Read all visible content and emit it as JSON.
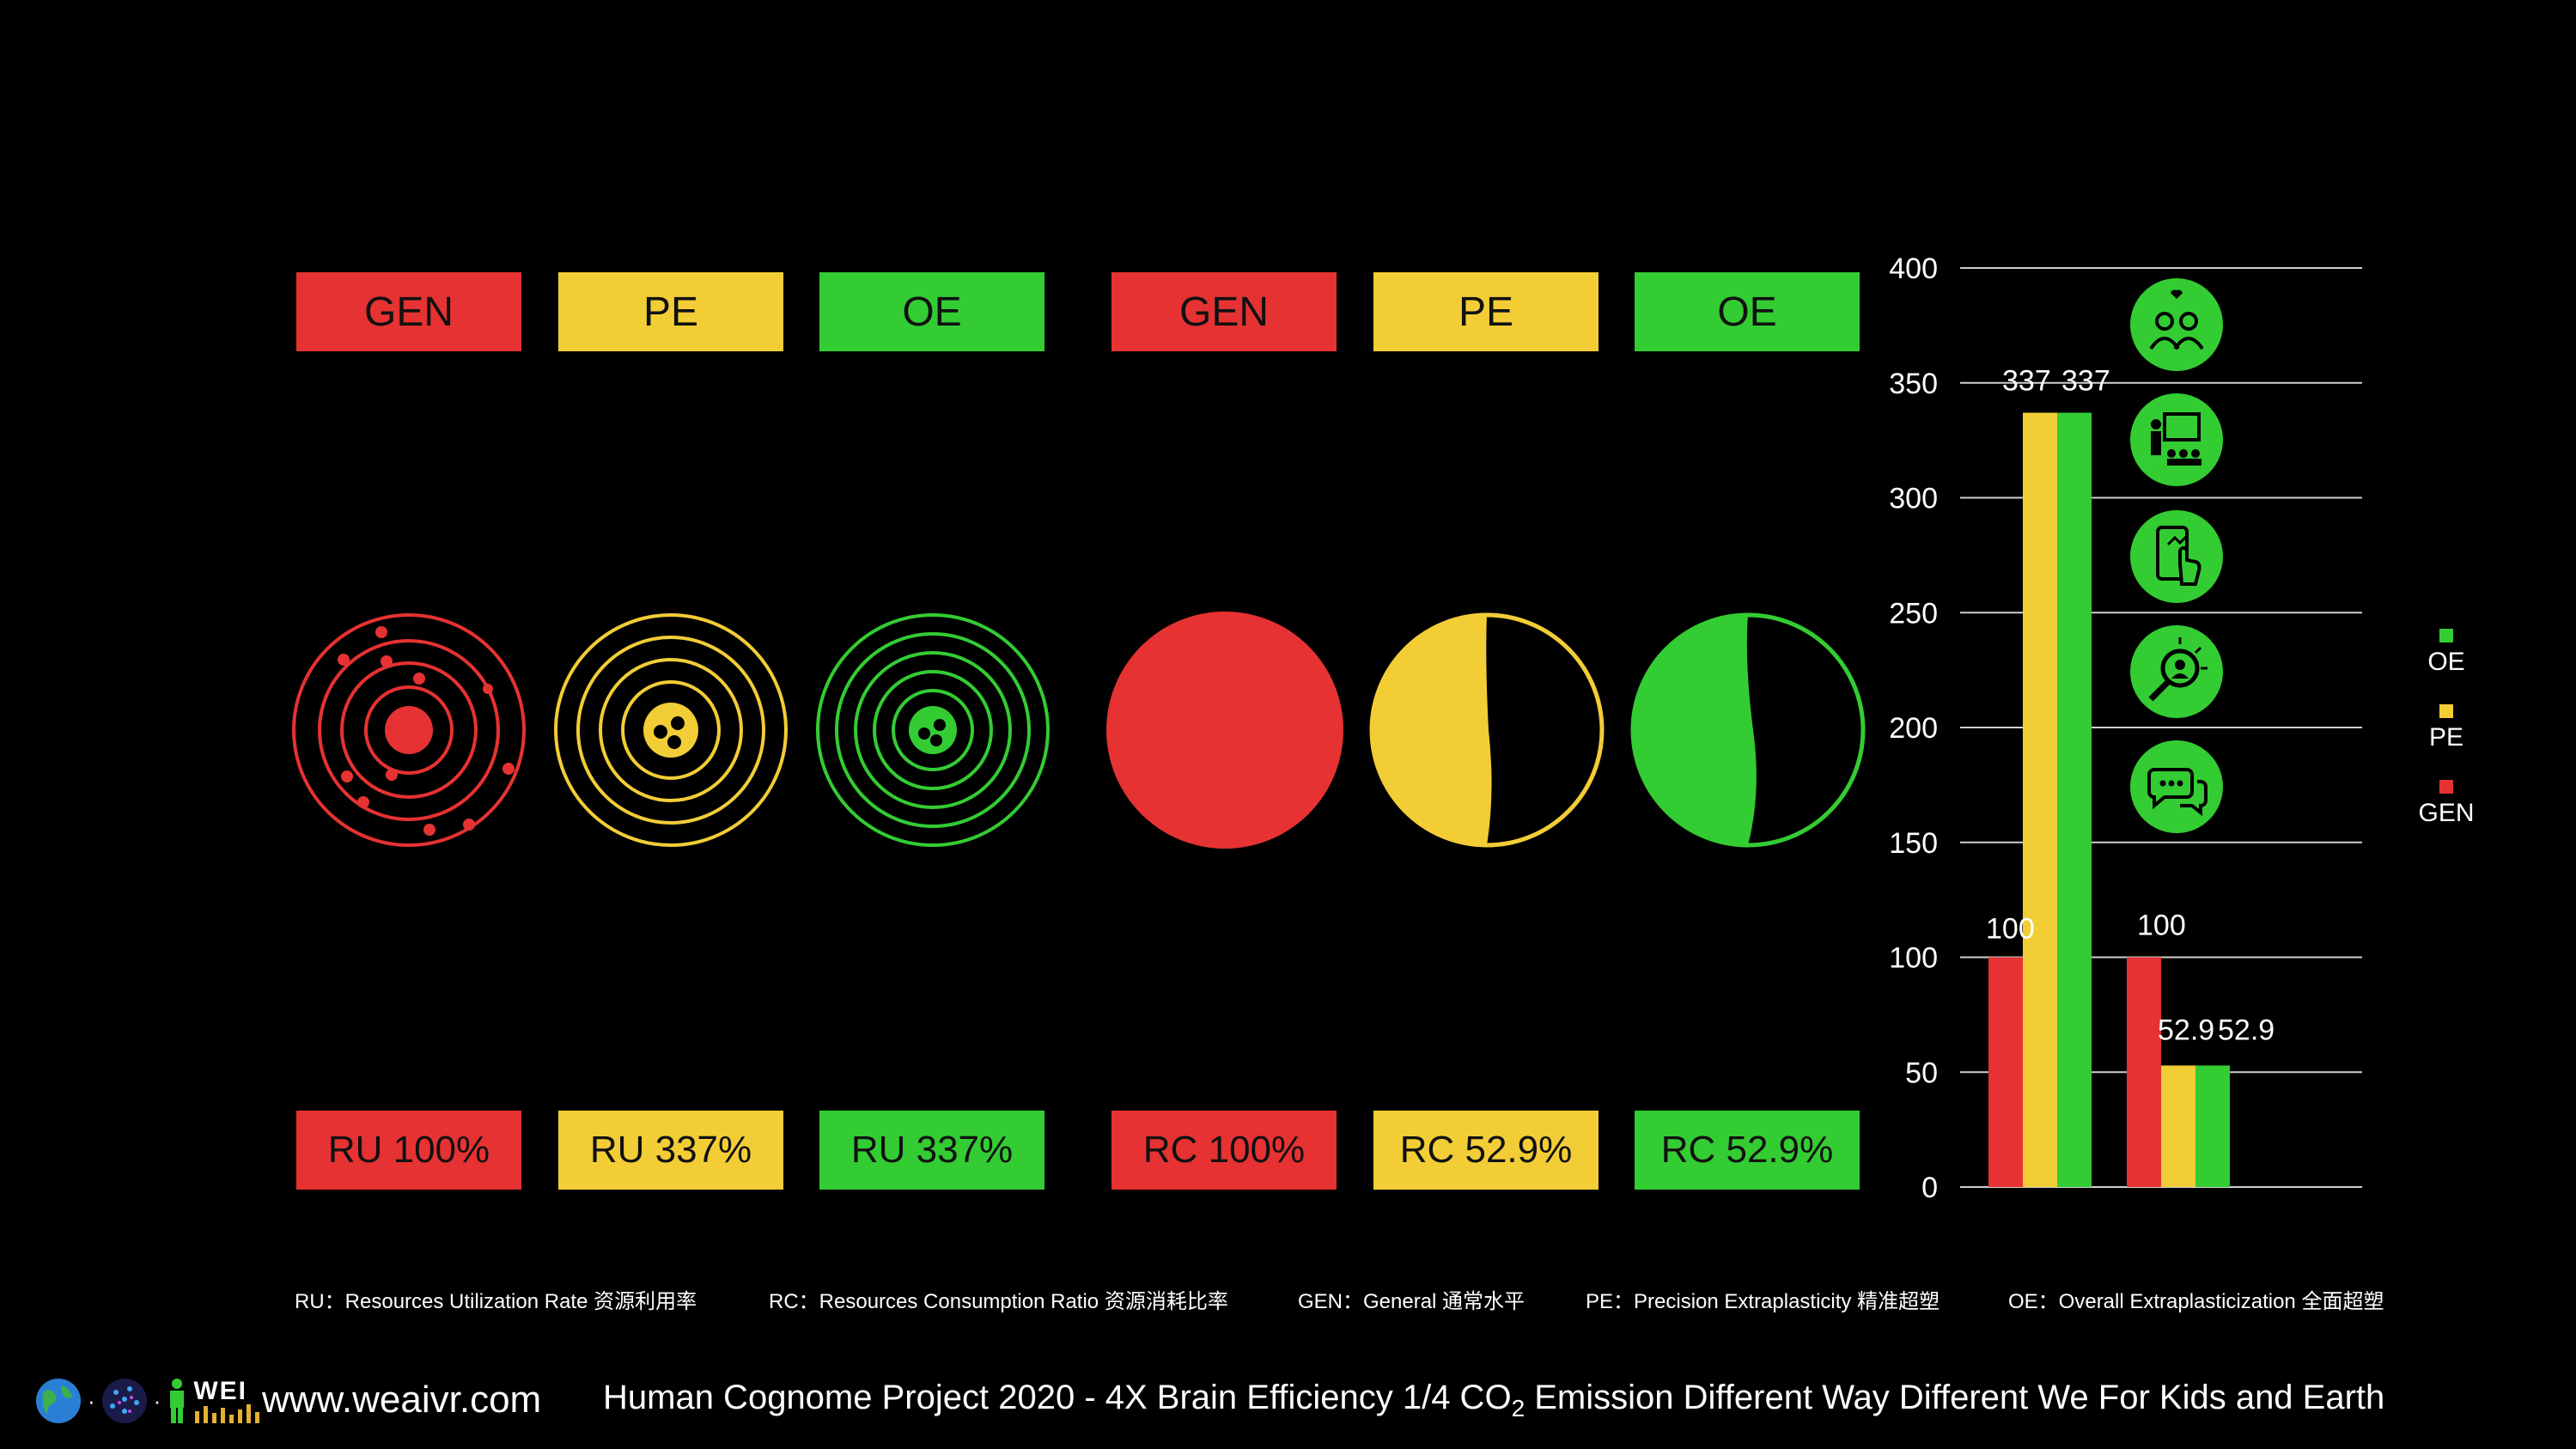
{
  "top_tags": [
    {
      "label": "GEN",
      "color": "#e63232"
    },
    {
      "label": "PE",
      "color": "#f2cd36"
    },
    {
      "label": "OE",
      "color": "#33cc33"
    },
    {
      "label": "GEN",
      "color": "#e63232"
    },
    {
      "label": "PE",
      "color": "#f2cd36"
    },
    {
      "label": "OE",
      "color": "#33cc33"
    }
  ],
  "bottom_tags": [
    {
      "label": "RU 100%",
      "color": "#e63232"
    },
    {
      "label": "RU 337%",
      "color": "#f2cd36"
    },
    {
      "label": "RU 337%",
      "color": "#33cc33"
    },
    {
      "label": "RC 100%",
      "color": "#e63232"
    },
    {
      "label": "RC 52.9%",
      "color": "#f2cd36"
    },
    {
      "label": "RC 52.9%",
      "color": "#33cc33"
    }
  ],
  "colors": {
    "gen": "#e63232",
    "pe": "#f2cd36",
    "oe": "#33cc33"
  },
  "icons": [
    "community-heart-icon",
    "teacher-presentation-icon",
    "mobile-touch-icon",
    "search-person-icon",
    "chat-bubbles-icon"
  ],
  "chart_data": {
    "type": "bar",
    "groups": [
      "RU",
      "RC"
    ],
    "series": [
      {
        "name": "GEN",
        "color": "#e63232",
        "values": [
          100,
          100
        ]
      },
      {
        "name": "PE",
        "color": "#f2cd36",
        "values": [
          337,
          52.9
        ]
      },
      {
        "name": "OE",
        "color": "#33cc33",
        "values": [
          337,
          52.9
        ]
      }
    ],
    "data_labels": [
      [
        "100",
        "337",
        "337"
      ],
      [
        "100",
        "52.9",
        "52.9"
      ]
    ],
    "ylim": [
      0,
      400
    ],
    "yticks": [
      0,
      50,
      100,
      150,
      200,
      250,
      300,
      350,
      400
    ],
    "grid": true,
    "legend_position": "right",
    "legend_order": [
      "OE",
      "PE",
      "GEN"
    ]
  },
  "definitions": [
    "RU：Resources Utilization Rate 资源利用率",
    "RC：Resources Consumption Ratio 资源消耗比率",
    "GEN：General 通常水平",
    "PE：Precision Extraplasticity 精准超塑",
    "OE：Overall Extraplasticization 全面超塑"
  ],
  "footer": {
    "url": "www.weaivr.com",
    "logo_text": "WEI",
    "slogan_pre": "Human Cognome Project 2020 - 4X Brain Efficiency 1/4 CO",
    "slogan_sub": "2",
    "slogan_post": " Emission  Different Way Different We  For Kids and Earth"
  }
}
